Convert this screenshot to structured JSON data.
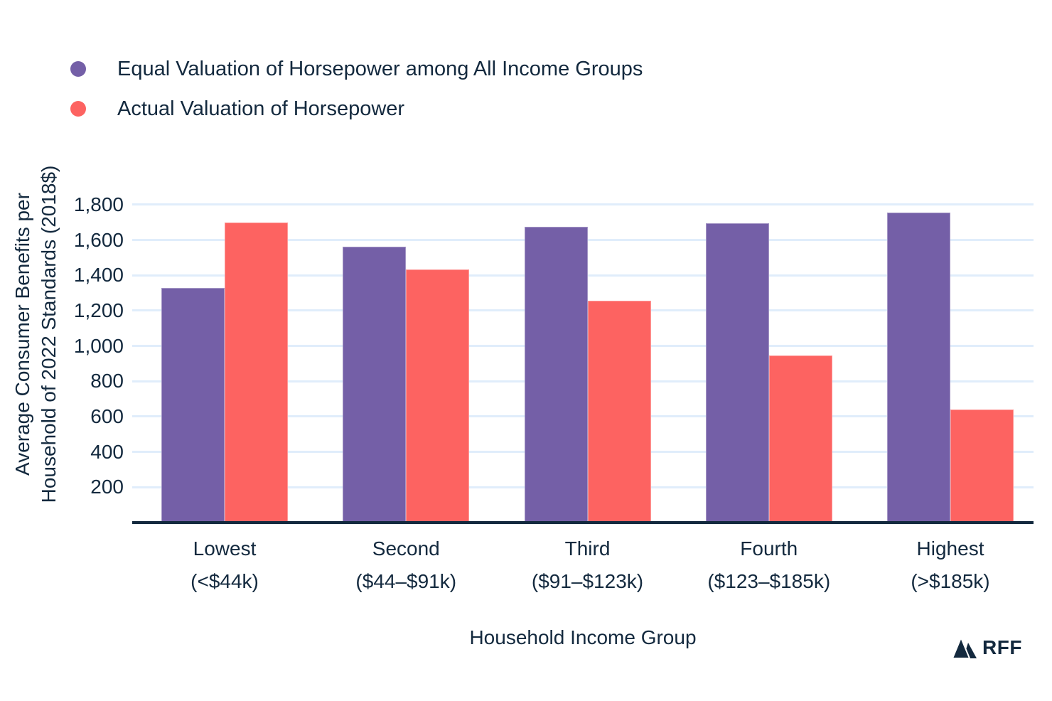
{
  "chart_data": {
    "type": "bar",
    "title": "",
    "categories": [
      {
        "label": "Lowest",
        "sublabel": "(<$44k)"
      },
      {
        "label": "Second",
        "sublabel": "($44–$91k)"
      },
      {
        "label": "Third",
        "sublabel": "($91–$123k)"
      },
      {
        "label": "Fourth",
        "sublabel": "($123–$185k)"
      },
      {
        "label": "Highest",
        "sublabel": "(>$185k)"
      }
    ],
    "series": [
      {
        "name": "Equal Valuation of Horsepower among All Income Groups",
        "color": "#745FA7",
        "values": [
          1330,
          1560,
          1675,
          1695,
          1755
        ]
      },
      {
        "name": "Actual Valuation of Horsepower",
        "color": "#FD6361",
        "values": [
          1700,
          1435,
          1255,
          945,
          640
        ]
      }
    ],
    "xlabel": "Household Income Group",
    "ylabel": "Average Consumer Benefits per\nHousehold of 2022 Standards (2018$)",
    "yticks": [
      200,
      400,
      600,
      800,
      1000,
      1200,
      1400,
      1600,
      1800
    ],
    "ylim": [
      0,
      1900
    ],
    "grid": true,
    "legend_position": "top-left"
  },
  "branding": {
    "logo_text": "RFF",
    "logo_icon": "mountain-icon"
  },
  "colors": {
    "purple": "#745FA7",
    "coral": "#FD6361",
    "text": "#13293E",
    "axis": "#13293E",
    "gridline": "#E0EDFB",
    "background": "#FFFFFF"
  }
}
